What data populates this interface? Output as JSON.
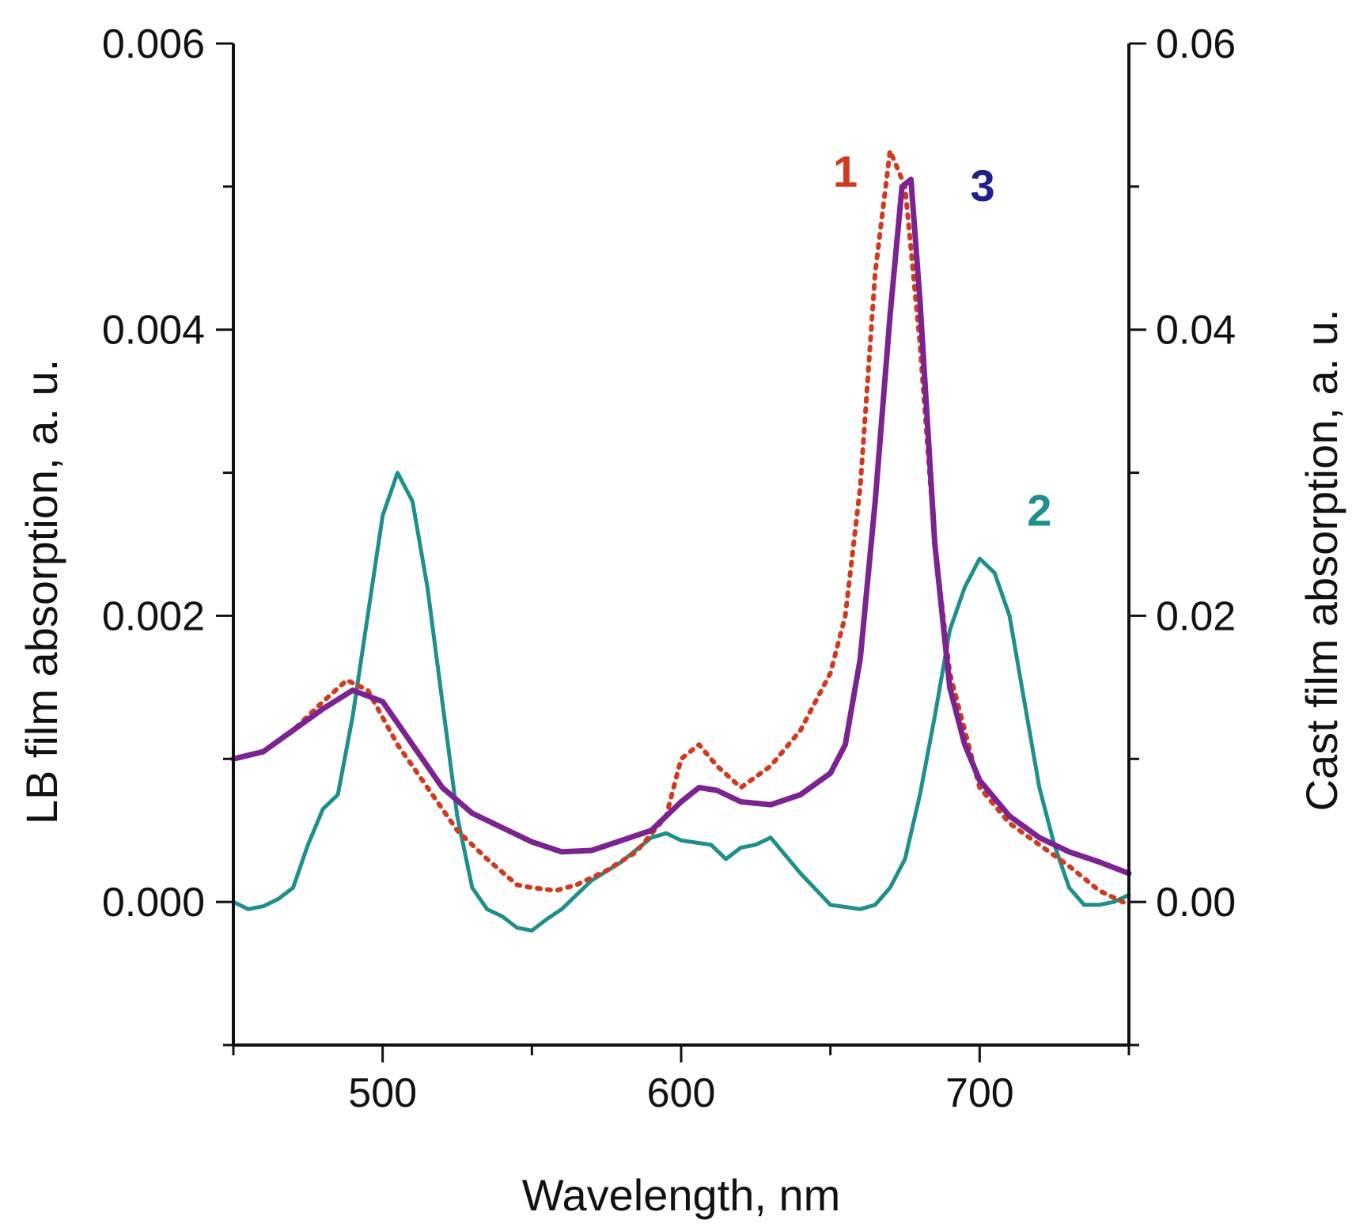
{
  "chart_data": {
    "type": "line",
    "title": "",
    "xlabel": "Wavelength, nm",
    "ylabel_left": "LB film absorption, a. u.",
    "ylabel_right": "Cast film absorption, a. u.",
    "xlim": [
      450,
      750
    ],
    "ylim_left": [
      -0.001,
      0.006
    ],
    "ylim_right": [
      -0.01,
      0.06
    ],
    "x_ticks": [
      500,
      600,
      700
    ],
    "x_tick_labels": [
      "500",
      "600",
      "700"
    ],
    "y_left_ticks": [
      0.0,
      0.002,
      0.004,
      0.006
    ],
    "y_left_tick_labels": [
      "0.000",
      "0.002",
      "0.004",
      "0.006"
    ],
    "y_right_ticks": [
      0.0,
      0.02,
      0.04,
      0.06
    ],
    "y_right_tick_labels": [
      "0.00",
      "0.02",
      "0.04",
      "0.06"
    ],
    "grid": false,
    "series": [
      {
        "name": "1",
        "label": "1",
        "axis": "left",
        "color": "#d23a1e",
        "style": "dotted",
        "x": [
          450,
          460,
          470,
          480,
          488,
          495,
          505,
          515,
          525,
          535,
          545,
          550,
          558,
          565,
          575,
          585,
          595,
          600,
          606,
          612,
          620,
          630,
          640,
          650,
          655,
          660,
          665,
          670,
          675,
          680,
          685,
          690,
          695,
          700,
          710,
          720,
          730,
          740,
          750
        ],
        "y": [
          0.001,
          0.00105,
          0.0012,
          0.0014,
          0.00155,
          0.00148,
          0.0011,
          0.0008,
          0.0005,
          0.0003,
          0.00012,
          0.0001,
          8e-05,
          0.00012,
          0.00022,
          0.00035,
          0.0006,
          0.001,
          0.0011,
          0.00095,
          0.0008,
          0.00095,
          0.0012,
          0.0016,
          0.002,
          0.0029,
          0.0044,
          0.00525,
          0.005,
          0.0039,
          0.0025,
          0.0016,
          0.0012,
          0.0008,
          0.00055,
          0.0004,
          0.00025,
          8e-05,
          -2e-05
        ]
      },
      {
        "name": "3",
        "label": "3",
        "axis": "left",
        "color": "#7b2390",
        "style": "solid",
        "x": [
          450,
          460,
          470,
          480,
          490,
          500,
          510,
          520,
          530,
          540,
          550,
          560,
          570,
          580,
          590,
          600,
          606,
          612,
          620,
          630,
          640,
          650,
          655,
          660,
          665,
          670,
          674,
          677,
          680,
          685,
          690,
          695,
          700,
          710,
          720,
          730,
          740,
          750
        ],
        "y": [
          0.001,
          0.00105,
          0.0012,
          0.00135,
          0.00148,
          0.0014,
          0.0011,
          0.0008,
          0.00062,
          0.00052,
          0.00042,
          0.00035,
          0.00036,
          0.00043,
          0.0005,
          0.0007,
          0.0008,
          0.00078,
          0.0007,
          0.00068,
          0.00075,
          0.0009,
          0.0011,
          0.0017,
          0.0028,
          0.0041,
          0.005,
          0.00505,
          0.0042,
          0.0025,
          0.0015,
          0.0011,
          0.00085,
          0.0006,
          0.00045,
          0.00035,
          0.00028,
          0.0002
        ]
      },
      {
        "name": "2",
        "label": "2",
        "axis": "right",
        "color": "#1f8f8c",
        "style": "solid",
        "x": [
          450,
          455,
          460,
          465,
          470,
          475,
          480,
          485,
          490,
          495,
          500,
          505,
          510,
          515,
          520,
          525,
          530,
          535,
          540,
          545,
          550,
          555,
          560,
          565,
          570,
          580,
          590,
          595,
          600,
          610,
          615,
          620,
          625,
          630,
          640,
          650,
          660,
          665,
          670,
          675,
          680,
          685,
          690,
          695,
          700,
          705,
          710,
          715,
          720,
          725,
          730,
          735,
          740,
          745,
          750
        ],
        "y": [
          0.0,
          -0.0005,
          -0.0003,
          0.0002,
          0.001,
          0.004,
          0.0065,
          0.0075,
          0.013,
          0.02,
          0.027,
          0.03,
          0.028,
          0.022,
          0.014,
          0.006,
          0.001,
          -0.0005,
          -0.001,
          -0.0018,
          -0.002,
          -0.0012,
          -0.0005,
          0.0005,
          0.0015,
          0.0028,
          0.0045,
          0.0048,
          0.0043,
          0.004,
          0.003,
          0.0038,
          0.004,
          0.0045,
          0.002,
          -0.0002,
          -0.0005,
          -0.0002,
          0.001,
          0.003,
          0.0075,
          0.013,
          0.019,
          0.022,
          0.024,
          0.023,
          0.02,
          0.014,
          0.008,
          0.004,
          0.001,
          -0.0002,
          -0.0002,
          0.0,
          0.0005
        ]
      }
    ]
  }
}
